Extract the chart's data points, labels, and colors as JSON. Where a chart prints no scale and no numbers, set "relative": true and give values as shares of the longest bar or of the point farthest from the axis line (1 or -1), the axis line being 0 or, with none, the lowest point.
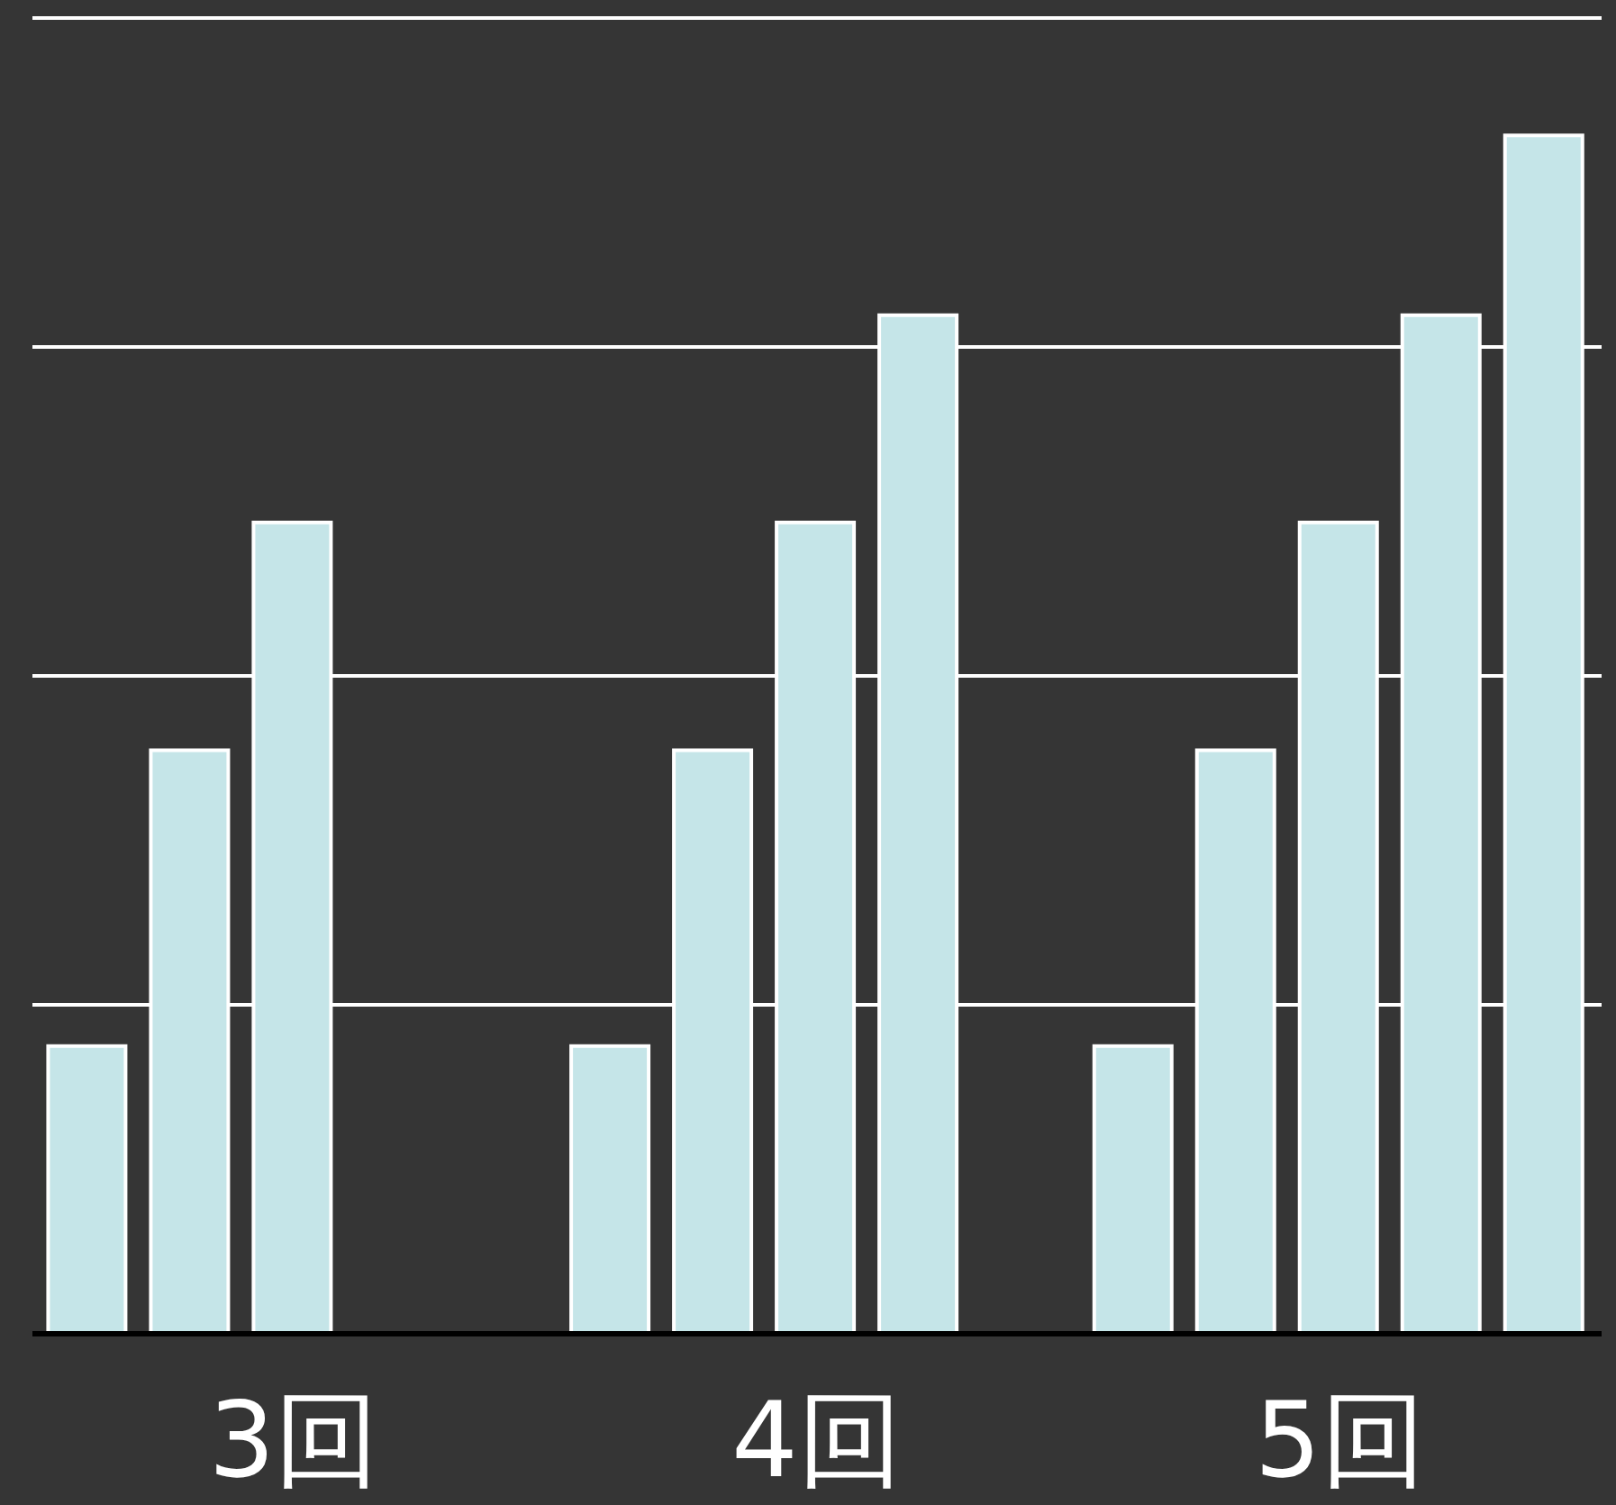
{
  "chart_data": {
    "type": "bar",
    "relative": true,
    "grid": "y",
    "categories": [
      "3回",
      "4回",
      "5回"
    ],
    "series": [
      {
        "color": "#c5e5e8",
        "values": [
          0.24,
          0.24,
          0.24
        ]
      },
      {
        "color": "#c5e5e8",
        "values": [
          0.487,
          0.487,
          0.487
        ]
      },
      {
        "color": "#c5e5e8",
        "values": [
          0.677,
          0.677,
          0.677
        ]
      },
      {
        "color": "#c5e5e8",
        "values": [
          null,
          0.85,
          0.85
        ]
      },
      {
        "color": "#c5e5e8",
        "values": [
          null,
          null,
          1
        ]
      }
    ]
  }
}
